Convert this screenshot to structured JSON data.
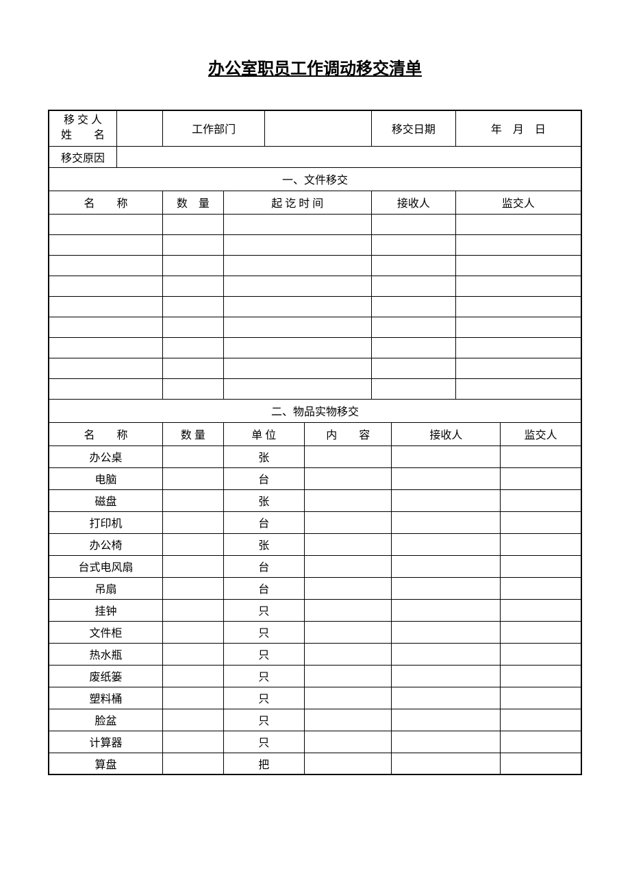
{
  "title": "办公室职员工作调动移交清单",
  "header": {
    "nameLabelLine1": "移 交 人",
    "nameLabelLine2": "姓  名",
    "nameValue": "",
    "deptLabel": "工作部门",
    "deptValue": "",
    "dateLabel": "移交日期",
    "dateValue": "年 月 日",
    "reasonLabel": "移交原因",
    "reasonValue": ""
  },
  "section1": {
    "title": "一、文件移交",
    "columns": {
      "name": "名  称",
      "qty": "数 量",
      "period": "起 讫 时 间",
      "receiver": "接收人",
      "supervisor": "监交人"
    },
    "rowCount": 9
  },
  "section2": {
    "title": "二、物品实物移交",
    "columns": {
      "name": "名  称",
      "qty": "数 量",
      "unit": "单 位",
      "content": "内  容",
      "receiver": "接收人",
      "supervisor": "监交人"
    },
    "items": [
      {
        "name": "办公桌",
        "unit": "张"
      },
      {
        "name": "电脑",
        "unit": "台"
      },
      {
        "name": "磁盘",
        "unit": "张"
      },
      {
        "name": "打印机",
        "unit": "台"
      },
      {
        "name": "办公椅",
        "unit": "张"
      },
      {
        "name": "台式电风扇",
        "unit": "台"
      },
      {
        "name": "吊扇",
        "unit": "台"
      },
      {
        "name": "挂钟",
        "unit": "只"
      },
      {
        "name": "文件柜",
        "unit": "只"
      },
      {
        "name": "热水瓶",
        "unit": "只"
      },
      {
        "name": "废纸篓",
        "unit": "只"
      },
      {
        "name": "塑料桶",
        "unit": "只"
      },
      {
        "name": "脸盆",
        "unit": "只"
      },
      {
        "name": "计算器",
        "unit": "只"
      },
      {
        "name": "算盘",
        "unit": "把"
      }
    ]
  },
  "styling": {
    "pageWidth": 920,
    "pageHeight": 1300,
    "background": "#ffffff",
    "borderColor": "#000000",
    "outerBorderWidth": 2,
    "innerBorderWidth": 1,
    "titleFontSize": 24,
    "cellFontSize": 16,
    "fontFamily": "SimSun"
  }
}
